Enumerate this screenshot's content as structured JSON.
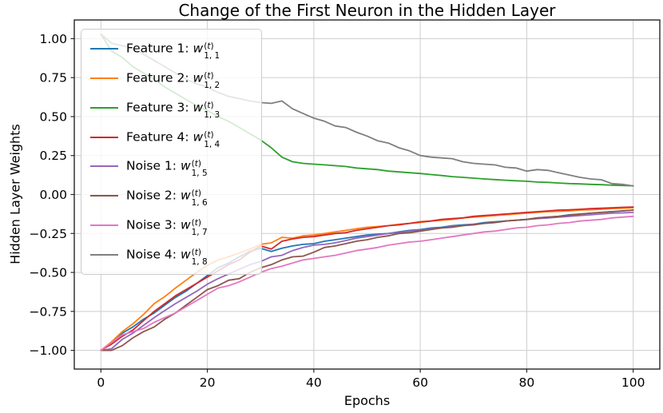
{
  "chart_data": {
    "type": "line",
    "title": "Change of the First Neuron in the Hidden Layer",
    "xlabel": "Epochs",
    "ylabel": "Hidden Layer Weights",
    "xlim": [
      -5,
      105
    ],
    "ylim": [
      -1.12,
      1.12
    ],
    "xticks": [
      0,
      20,
      40,
      60,
      80,
      100
    ],
    "xtick_labels": [
      "0",
      "20",
      "40",
      "60",
      "80",
      "100"
    ],
    "yticks": [
      1.0,
      0.75,
      0.5,
      0.25,
      0.0,
      -0.25,
      -0.5,
      -0.75,
      -1.0
    ],
    "ytick_labels": [
      "1.00",
      "0.75",
      "0.50",
      "0.25",
      "0.00",
      "−0.25",
      "−0.50",
      "−0.75",
      "−1.00"
    ],
    "grid": true,
    "grid_color": "#cdcdcd",
    "spine_color": "#262626",
    "legend_position": "upper-left",
    "x": [
      0,
      2,
      4,
      6,
      8,
      10,
      12,
      14,
      16,
      18,
      20,
      22,
      24,
      26,
      28,
      30,
      32,
      34,
      36,
      38,
      40,
      42,
      44,
      46,
      48,
      50,
      52,
      54,
      56,
      58,
      60,
      62,
      64,
      66,
      68,
      70,
      72,
      74,
      76,
      78,
      80,
      82,
      84,
      86,
      88,
      90,
      92,
      94,
      96,
      98,
      100
    ],
    "series": [
      {
        "name": "Feature 1",
        "label_prefix": "Feature 1: ",
        "symbol": "w",
        "superscript": "(t)",
        "subscript": "1, 1",
        "color": "#1f77b4",
        "values": [
          -1.0,
          -0.95,
          -0.89,
          -0.85,
          -0.8,
          -0.76,
          -0.71,
          -0.66,
          -0.62,
          -0.57,
          -0.52,
          -0.47,
          -0.44,
          -0.4,
          -0.365,
          -0.345,
          -0.365,
          -0.345,
          -0.33,
          -0.32,
          -0.315,
          -0.3,
          -0.29,
          -0.28,
          -0.27,
          -0.26,
          -0.255,
          -0.25,
          -0.24,
          -0.23,
          -0.225,
          -0.215,
          -0.21,
          -0.2,
          -0.195,
          -0.19,
          -0.18,
          -0.175,
          -0.17,
          -0.165,
          -0.16,
          -0.15,
          -0.145,
          -0.14,
          -0.13,
          -0.125,
          -0.12,
          -0.115,
          -0.11,
          -0.105,
          -0.1
        ]
      },
      {
        "name": "Feature 2",
        "label_prefix": "Feature 2: ",
        "symbol": "w",
        "superscript": "(t)",
        "subscript": "1, 2",
        "color": "#ff7f0e",
        "values": [
          -1.0,
          -0.945,
          -0.88,
          -0.83,
          -0.77,
          -0.7,
          -0.655,
          -0.6,
          -0.55,
          -0.5,
          -0.455,
          -0.42,
          -0.4,
          -0.375,
          -0.35,
          -0.32,
          -0.31,
          -0.275,
          -0.28,
          -0.265,
          -0.26,
          -0.25,
          -0.24,
          -0.23,
          -0.22,
          -0.21,
          -0.205,
          -0.2,
          -0.19,
          -0.185,
          -0.18,
          -0.17,
          -0.165,
          -0.16,
          -0.15,
          -0.145,
          -0.14,
          -0.135,
          -0.13,
          -0.125,
          -0.12,
          -0.115,
          -0.11,
          -0.108,
          -0.105,
          -0.1,
          -0.098,
          -0.095,
          -0.09,
          -0.088,
          -0.085
        ]
      },
      {
        "name": "Feature 3",
        "label_prefix": "Feature 3: ",
        "symbol": "w",
        "superscript": "(t)",
        "subscript": "1, 3",
        "color": "#2ca02c",
        "values": [
          1.03,
          0.92,
          0.88,
          0.82,
          0.78,
          0.74,
          0.69,
          0.65,
          0.61,
          0.57,
          0.54,
          0.5,
          0.47,
          0.43,
          0.39,
          0.35,
          0.3,
          0.24,
          0.21,
          0.2,
          0.195,
          0.19,
          0.185,
          0.18,
          0.17,
          0.165,
          0.16,
          0.15,
          0.145,
          0.14,
          0.135,
          0.128,
          0.122,
          0.115,
          0.11,
          0.105,
          0.1,
          0.096,
          0.092,
          0.088,
          0.085,
          0.08,
          0.078,
          0.074,
          0.07,
          0.068,
          0.065,
          0.063,
          0.06,
          0.058,
          0.056
        ]
      },
      {
        "name": "Feature 4",
        "label_prefix": "Feature 4: ",
        "symbol": "w",
        "superscript": "(t)",
        "subscript": "1, 4",
        "color": "#d62728",
        "values": [
          -1.0,
          -0.96,
          -0.91,
          -0.87,
          -0.81,
          -0.75,
          -0.7,
          -0.65,
          -0.61,
          -0.57,
          -0.53,
          -0.49,
          -0.45,
          -0.42,
          -0.37,
          -0.33,
          -0.35,
          -0.3,
          -0.285,
          -0.275,
          -0.27,
          -0.26,
          -0.25,
          -0.245,
          -0.23,
          -0.22,
          -0.21,
          -0.2,
          -0.195,
          -0.185,
          -0.175,
          -0.17,
          -0.16,
          -0.155,
          -0.15,
          -0.14,
          -0.135,
          -0.13,
          -0.125,
          -0.12,
          -0.115,
          -0.11,
          -0.105,
          -0.1,
          -0.098,
          -0.095,
          -0.09,
          -0.088,
          -0.085,
          -0.082,
          -0.08
        ]
      },
      {
        "name": "Noise 1",
        "label_prefix": "Noise 1: ",
        "symbol": "w",
        "superscript": "(t)",
        "subscript": "1, 5",
        "color": "#9467bd",
        "values": [
          -1.0,
          -0.99,
          -0.93,
          -0.89,
          -0.84,
          -0.79,
          -0.745,
          -0.7,
          -0.66,
          -0.62,
          -0.575,
          -0.54,
          -0.51,
          -0.48,
          -0.45,
          -0.43,
          -0.4,
          -0.39,
          -0.36,
          -0.34,
          -0.325,
          -0.32,
          -0.31,
          -0.295,
          -0.28,
          -0.27,
          -0.26,
          -0.25,
          -0.245,
          -0.235,
          -0.23,
          -0.22,
          -0.215,
          -0.205,
          -0.2,
          -0.19,
          -0.185,
          -0.18,
          -0.17,
          -0.165,
          -0.16,
          -0.155,
          -0.15,
          -0.145,
          -0.14,
          -0.135,
          -0.13,
          -0.125,
          -0.12,
          -0.118,
          -0.115
        ]
      },
      {
        "name": "Noise 2",
        "label_prefix": "Noise 2: ",
        "symbol": "w",
        "superscript": "(t)",
        "subscript": "1, 6",
        "color": "#8c564b",
        "values": [
          -1.0,
          -1.0,
          -0.97,
          -0.92,
          -0.88,
          -0.85,
          -0.8,
          -0.76,
          -0.71,
          -0.66,
          -0.61,
          -0.585,
          -0.55,
          -0.54,
          -0.5,
          -0.47,
          -0.45,
          -0.42,
          -0.4,
          -0.395,
          -0.37,
          -0.34,
          -0.33,
          -0.315,
          -0.3,
          -0.29,
          -0.275,
          -0.265,
          -0.25,
          -0.245,
          -0.235,
          -0.225,
          -0.215,
          -0.21,
          -0.2,
          -0.195,
          -0.185,
          -0.18,
          -0.17,
          -0.165,
          -0.16,
          -0.15,
          -0.145,
          -0.14,
          -0.132,
          -0.126,
          -0.12,
          -0.115,
          -0.11,
          -0.105,
          -0.1
        ]
      },
      {
        "name": "Noise 3",
        "label_prefix": "Noise 3: ",
        "symbol": "w",
        "superscript": "(t)",
        "subscript": "1, 7",
        "color": "#e377c2",
        "values": [
          -1.0,
          -0.95,
          -0.9,
          -0.88,
          -0.86,
          -0.82,
          -0.79,
          -0.76,
          -0.72,
          -0.68,
          -0.64,
          -0.6,
          -0.585,
          -0.56,
          -0.53,
          -0.5,
          -0.475,
          -0.46,
          -0.44,
          -0.42,
          -0.41,
          -0.4,
          -0.39,
          -0.375,
          -0.36,
          -0.35,
          -0.34,
          -0.325,
          -0.315,
          -0.305,
          -0.3,
          -0.29,
          -0.28,
          -0.27,
          -0.26,
          -0.25,
          -0.24,
          -0.235,
          -0.225,
          -0.215,
          -0.21,
          -0.2,
          -0.195,
          -0.185,
          -0.18,
          -0.17,
          -0.165,
          -0.16,
          -0.15,
          -0.145,
          -0.14
        ]
      },
      {
        "name": "Noise 4",
        "label_prefix": "Noise 4: ",
        "symbol": "w",
        "superscript": "(t)",
        "subscript": "1, 8",
        "color": "#7f7f7f",
        "values": [
          1.03,
          0.97,
          0.955,
          0.94,
          0.9,
          0.86,
          0.82,
          0.78,
          0.74,
          0.71,
          0.69,
          0.655,
          0.63,
          0.615,
          0.6,
          0.59,
          0.585,
          0.6,
          0.55,
          0.52,
          0.49,
          0.47,
          0.44,
          0.43,
          0.4,
          0.375,
          0.345,
          0.33,
          0.3,
          0.28,
          0.25,
          0.24,
          0.235,
          0.23,
          0.21,
          0.2,
          0.195,
          0.19,
          0.175,
          0.17,
          0.15,
          0.16,
          0.155,
          0.14,
          0.125,
          0.11,
          0.1,
          0.095,
          0.07,
          0.065,
          0.055
        ]
      }
    ]
  }
}
